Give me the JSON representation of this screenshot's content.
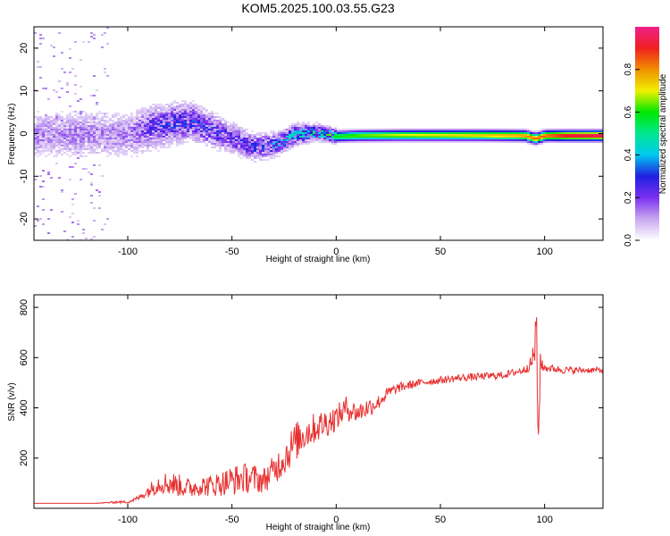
{
  "figure": {
    "title": "KOM5.2025.100.03.55.G23"
  },
  "chart_data": [
    {
      "type": "heatmap",
      "title": "KOM5.2025.100.03.55.G23",
      "xlabel": "Height of straight line (km)",
      "ylabel": "Frequency (Hz)",
      "xlim": [
        -145,
        128
      ],
      "ylim": [
        -25,
        25
      ],
      "xticks": [
        -100,
        -50,
        0,
        50,
        100
      ],
      "xtick_labels": [
        "-100",
        "-50",
        "0",
        "50",
        "100"
      ],
      "yticks": [
        -20,
        -10,
        0,
        10,
        20
      ],
      "ytick_labels": [
        "-20",
        "-10",
        "0",
        "10",
        "20"
      ],
      "colorbar": {
        "label": "Normalized spectral amplitude",
        "range": [
          0,
          1
        ],
        "ticks": [
          0.0,
          0.2,
          0.4,
          0.6,
          0.8
        ],
        "tick_labels": [
          "0.0",
          "0.2",
          "0.4",
          "0.6",
          "0.8"
        ],
        "colormap": [
          "#ffffff",
          "#c8a8f0",
          "#7b2ff0",
          "#2020e0",
          "#00c8f0",
          "#00e890",
          "#00e800",
          "#f0f000",
          "#f09000",
          "#f02020",
          "#f0208a"
        ]
      },
      "ridge": {
        "x": [
          -100,
          -90,
          -80,
          -70,
          -60,
          -50,
          -40,
          -30,
          -20,
          -10,
          0,
          10,
          30,
          50,
          70,
          90,
          95,
          100,
          110,
          128
        ],
        "frequency": [
          0.0,
          1.5,
          2.5,
          3.0,
          1.0,
          -1.0,
          -3.0,
          -2.5,
          0.0,
          0.5,
          -0.5,
          -0.3,
          -0.2,
          -0.2,
          -0.2,
          -0.3,
          -1.0,
          -0.3,
          -0.3,
          -0.3
        ],
        "amplitude": [
          0.15,
          0.25,
          0.3,
          0.3,
          0.3,
          0.25,
          0.3,
          0.35,
          0.45,
          0.5,
          0.6,
          0.65,
          0.7,
          0.72,
          0.75,
          0.8,
          0.85,
          0.85,
          0.95,
          0.98
        ]
      },
      "grid": false
    },
    {
      "type": "line",
      "xlabel": "Height of straight line (km)",
      "ylabel": "SNR (v/v)",
      "xlim": [
        -145,
        128
      ],
      "ylim": [
        0,
        850
      ],
      "xticks": [
        -100,
        -50,
        0,
        50,
        100
      ],
      "xtick_labels": [
        "-100",
        "-50",
        "0",
        "50",
        "100"
      ],
      "yticks": [
        200,
        400,
        600,
        800
      ],
      "ytick_labels": [
        "200",
        "400",
        "600",
        "800"
      ],
      "color": "#e83030",
      "grid": false,
      "series": [
        {
          "x": [
            -145,
            -130,
            -115,
            -105,
            -100,
            -95,
            -90,
            -85,
            -80,
            -75,
            -70,
            -65,
            -60,
            -55,
            -50,
            -45,
            -40,
            -35,
            -30,
            -25,
            -20,
            -15,
            -10,
            -5,
            0,
            5,
            10,
            15,
            20,
            25,
            30,
            40,
            50,
            60,
            70,
            80,
            90,
            94,
            96,
            97,
            98,
            99,
            100,
            110,
            120,
            128
          ],
          "y": [
            20,
            20,
            20,
            25,
            25,
            40,
            70,
            100,
            100,
            90,
            80,
            90,
            90,
            100,
            110,
            120,
            120,
            110,
            150,
            200,
            260,
            300,
            320,
            340,
            360,
            400,
            380,
            400,
            420,
            460,
            480,
            500,
            510,
            520,
            525,
            530,
            550,
            580,
            700,
            250,
            600,
            560,
            560,
            550,
            550,
            550
          ],
          "amplitude": [
            0,
            0,
            0,
            5,
            5,
            10,
            25,
            40,
            50,
            45,
            40,
            40,
            45,
            50,
            60,
            60,
            60,
            50,
            60,
            70,
            80,
            70,
            60,
            60,
            50,
            50,
            40,
            40,
            30,
            25,
            20,
            15,
            15,
            15,
            15,
            15,
            15,
            30,
            150,
            50,
            60,
            20,
            15,
            15,
            12,
            12
          ]
        }
      ]
    }
  ]
}
